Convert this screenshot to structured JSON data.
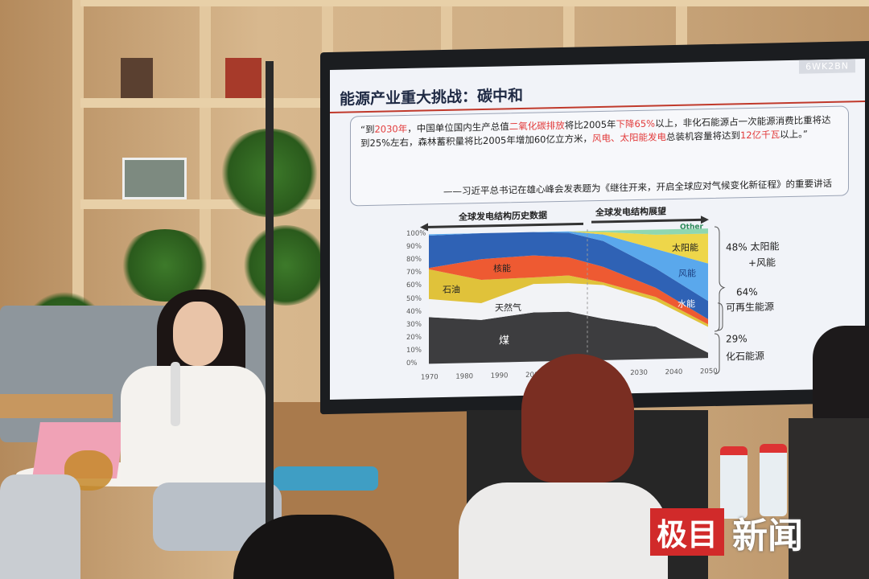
{
  "slide": {
    "watermark_code": "6WK2BN",
    "title": "能源产业重大挑战：碳中和",
    "quote": {
      "p1": "“到",
      "r1": "2030年",
      "p2": "，中国单位国内生产总值",
      "r2": "二氧化碳排放",
      "p3": "将比2005年",
      "r3": "下降65%",
      "p4": "以上，非化石能源占一次能源消费比重将达到25%左右，森林蓄积量将比2005年增加60亿立方米，",
      "r4": "风电、太阳能发电",
      "p5": "总装机容量将达到",
      "r5": "12亿千瓦",
      "p6": "以上。”",
      "source": "——习近平总书记在雄心峰会发表题为《继往开来，开启全球应对气候变化新征程》的重要讲话"
    },
    "chart": {
      "history_label": "全球发电结构历史数据",
      "outlook_label": "全球发电结构展望",
      "y_ticks": [
        "100%",
        "90%",
        "80%",
        "70%",
        "60%",
        "50%",
        "40%",
        "30%",
        "20%",
        "10%",
        "0%"
      ],
      "x_ticks": [
        "1970",
        "1980",
        "1990",
        "2000",
        "2030",
        "2040",
        "2050"
      ],
      "layers": {
        "coal": "煤",
        "gas": "天然气",
        "oil": "石油",
        "nuclear": "核能",
        "hydro": "水能",
        "wind": "风能",
        "solar": "太阳能",
        "other": "Other"
      },
      "annotations": {
        "a1": "48% 太阳能",
        "a1b": "+风能",
        "a2": "64%",
        "a2b": "可再生能源",
        "a3": "29%",
        "a3b": "化石能源"
      },
      "colors": {
        "coal": "#3d3d3f",
        "gas": "#f2f3f6",
        "oil": "#e0c23a",
        "nuclear": "#ee5a32",
        "hydro": "#2f62b5",
        "wind": "#5aa8ec",
        "solar": "#eed64a",
        "other": "#8fd7b0"
      }
    }
  },
  "logo": {
    "red": "极目",
    "text": "新闻"
  }
}
